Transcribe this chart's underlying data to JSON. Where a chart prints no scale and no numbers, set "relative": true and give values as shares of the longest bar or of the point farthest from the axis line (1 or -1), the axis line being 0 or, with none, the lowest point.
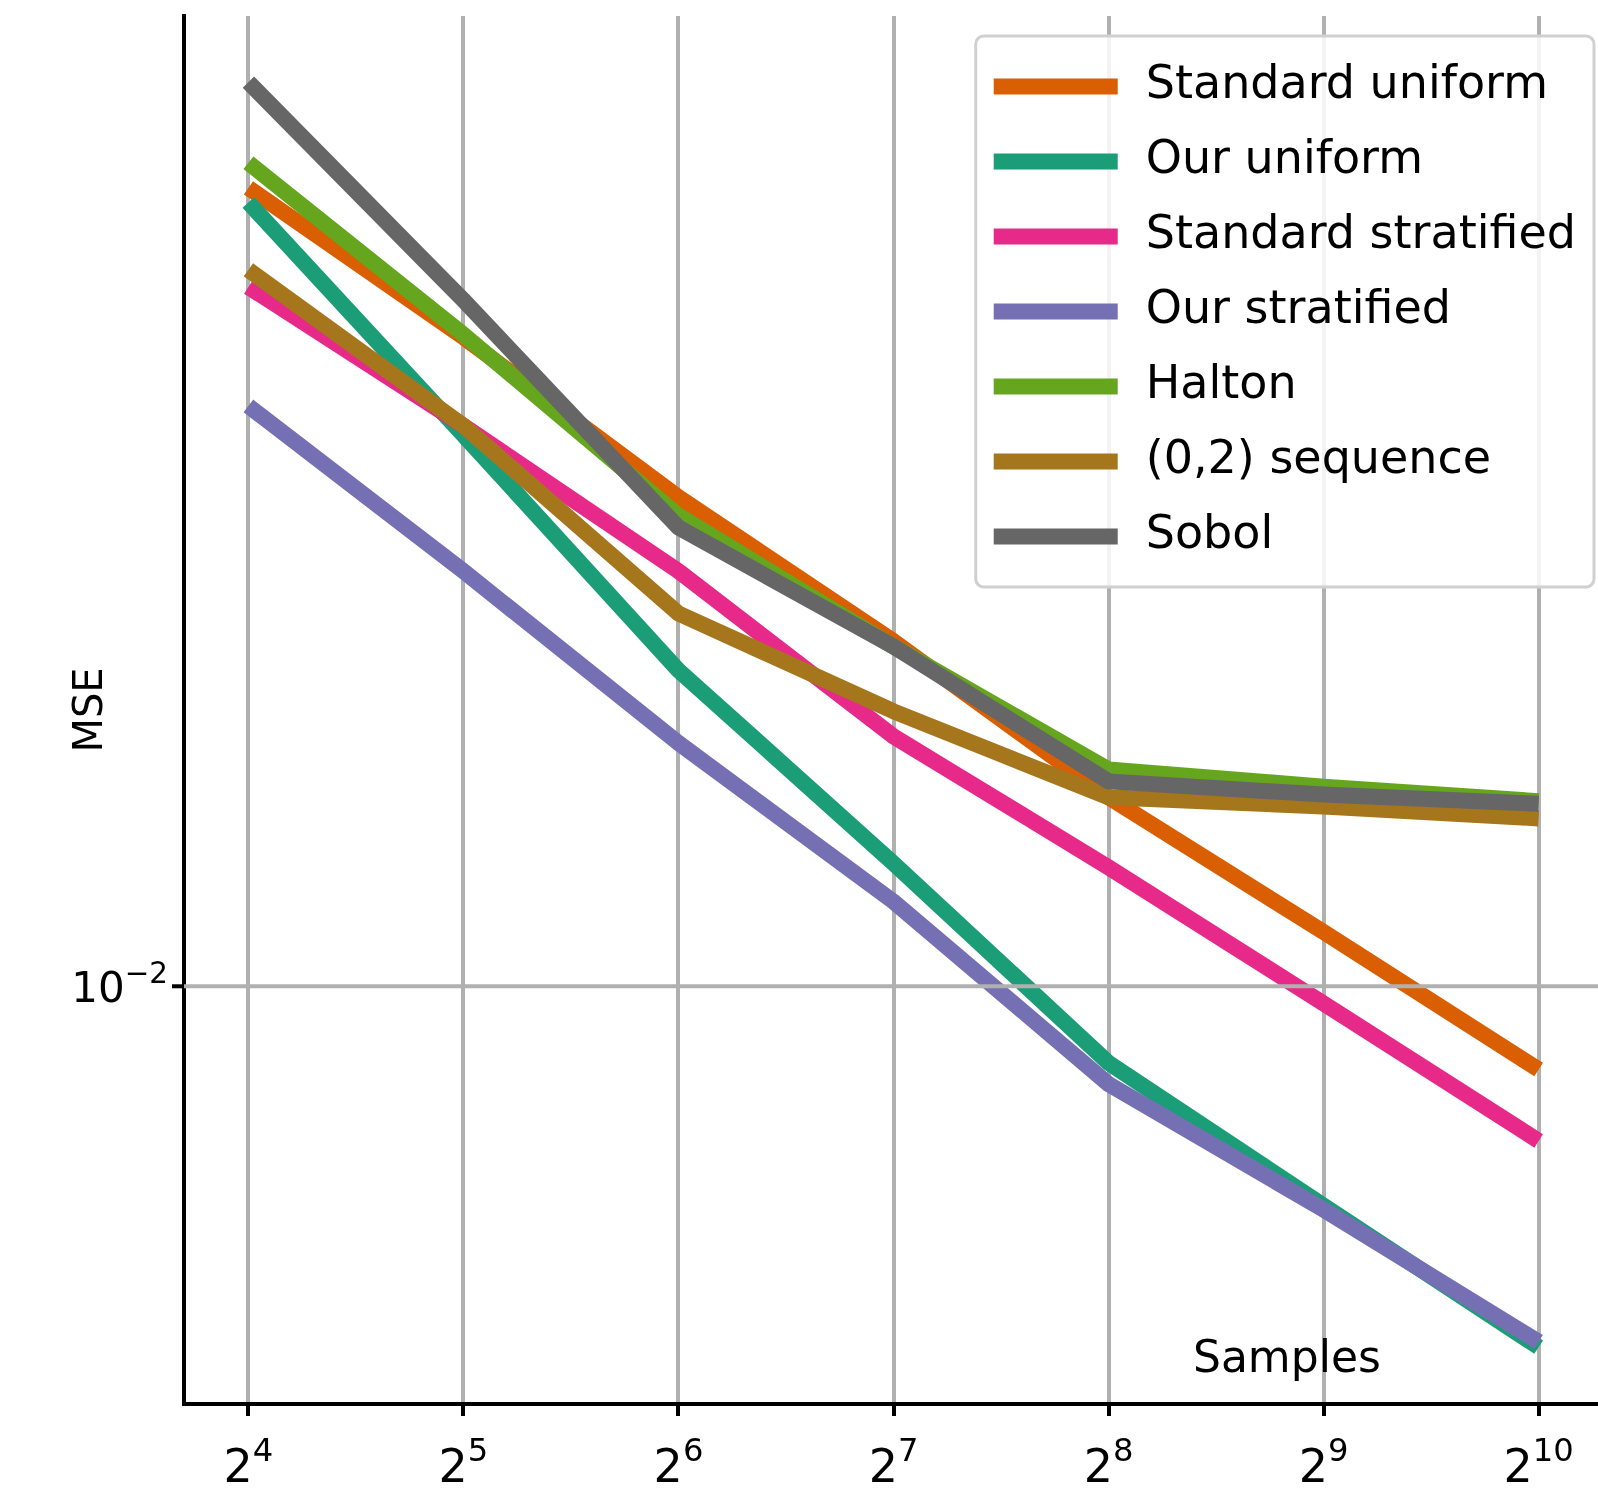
{
  "chart_data": {
    "type": "line",
    "xlabel": "Samples",
    "ylabel": "MSE",
    "log": "x",
    "grid": "x",
    "legend": "top right",
    "marker": "none",
    "line_style": "solid",
    "relative": true,
    "x": [
      16,
      32,
      64,
      128,
      256,
      512,
      1024
    ],
    "xlim": [
      13,
      1240
    ],
    "xticks": [
      {
        "value": 16,
        "label": "2$^{4}$"
      },
      {
        "value": 32,
        "label": "2$^{5}$"
      },
      {
        "value": 64,
        "label": "2$^{6}$"
      },
      {
        "value": 128,
        "label": "2$^{7}$"
      },
      {
        "value": 256,
        "label": "2$^{8}$"
      },
      {
        "value": 512,
        "label": "2$^{9}$"
      },
      {
        "value": 1024,
        "label": "2$^{10}$"
      }
    ],
    "ref_lines": [
      {
        "axis": "y",
        "value": 0.316,
        "label": "10$^{−2}$",
        "color": "#b0b0b0"
      }
    ],
    "series": [
      {
        "name": "Standard uniform",
        "color": "#d95f02",
        "values": [
          0.92,
          0.807,
          0.686,
          0.577,
          0.459,
          0.357,
          0.253
        ]
      },
      {
        "name": "Our uniform",
        "color": "#1b9e77",
        "values": [
          0.909,
          0.733,
          0.555,
          0.409,
          0.258,
          0.15,
          0.043
        ]
      },
      {
        "name": "Standard stratified",
        "color": "#e7298a",
        "values": [
          0.845,
          0.74,
          0.63,
          0.505,
          0.406,
          0.303,
          0.199
        ]
      },
      {
        "name": "Our stratified",
        "color": "#7570b3",
        "values": [
          0.755,
          0.63,
          0.5,
          0.38,
          0.242,
          0.147,
          0.047
        ]
      },
      {
        "name": "Halton",
        "color": "#66a61e",
        "values": [
          0.939,
          0.809,
          0.672,
          0.573,
          0.48,
          0.467,
          0.456
        ]
      },
      {
        "name": "(0,2) sequence",
        "color": "#a6761d",
        "values": [
          0.858,
          0.74,
          0.598,
          0.524,
          0.459,
          0.452,
          0.443
        ]
      },
      {
        "name": "Sobol",
        "color": "#666666",
        "values": [
          1,
          0.835,
          0.663,
          0.573,
          0.471,
          0.461,
          0.454
        ]
      }
    ]
  }
}
